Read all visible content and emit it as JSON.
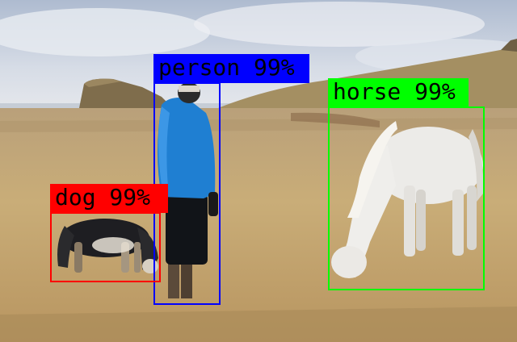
{
  "image": {
    "description_colors": {
      "sky": "#c9d3e0",
      "grass": "#c7ab78",
      "hill": "#8a7650"
    }
  },
  "detections": [
    {
      "id": "person",
      "label": "person 99%",
      "color": "#0000ff",
      "text_color": "#000000"
    },
    {
      "id": "horse",
      "label": "horse 99%",
      "color": "#00ff00",
      "text_color": "#000000"
    },
    {
      "id": "dog",
      "label": "dog 99%",
      "color": "#ff0000",
      "text_color": "#000000"
    }
  ]
}
